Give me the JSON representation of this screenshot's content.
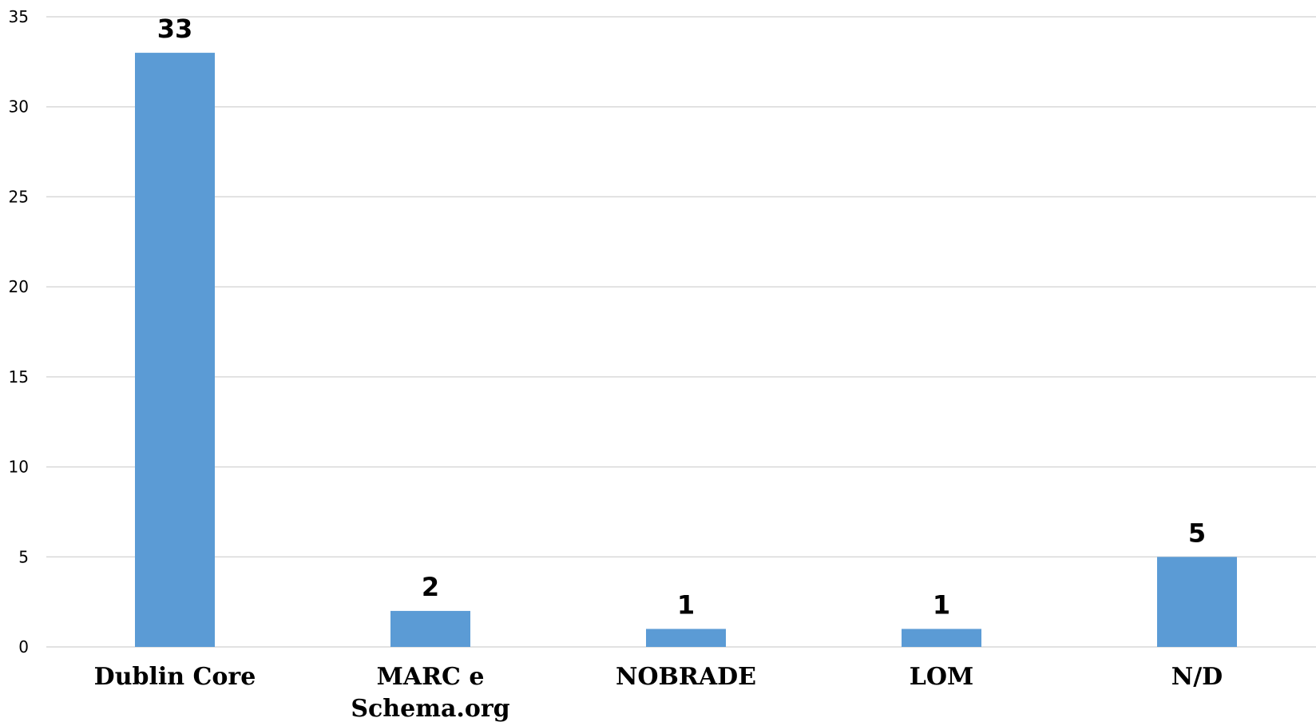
{
  "chart_data": {
    "type": "bar",
    "categories": [
      "Dublin Core",
      "MARC e Schema.org",
      "NOBRADE",
      "LOM",
      "N/D"
    ],
    "category_lines": [
      [
        "Dublin Core"
      ],
      [
        "MARC e",
        "Schema.org"
      ],
      [
        "NOBRADE"
      ],
      [
        "LOM"
      ],
      [
        "N/D"
      ]
    ],
    "values": [
      33,
      2,
      1,
      1,
      5
    ],
    "data_labels": [
      "33",
      "2",
      "1",
      "1",
      "5"
    ],
    "y_ticks": [
      "0",
      "5",
      "10",
      "15",
      "20",
      "25",
      "30",
      "35"
    ],
    "ylim": [
      0,
      35
    ],
    "title": "",
    "xlabel": "",
    "ylabel": "",
    "grid": true,
    "legend": "none",
    "bar_color": "#5b9bd5",
    "grid_color": "#d9d9d9"
  }
}
